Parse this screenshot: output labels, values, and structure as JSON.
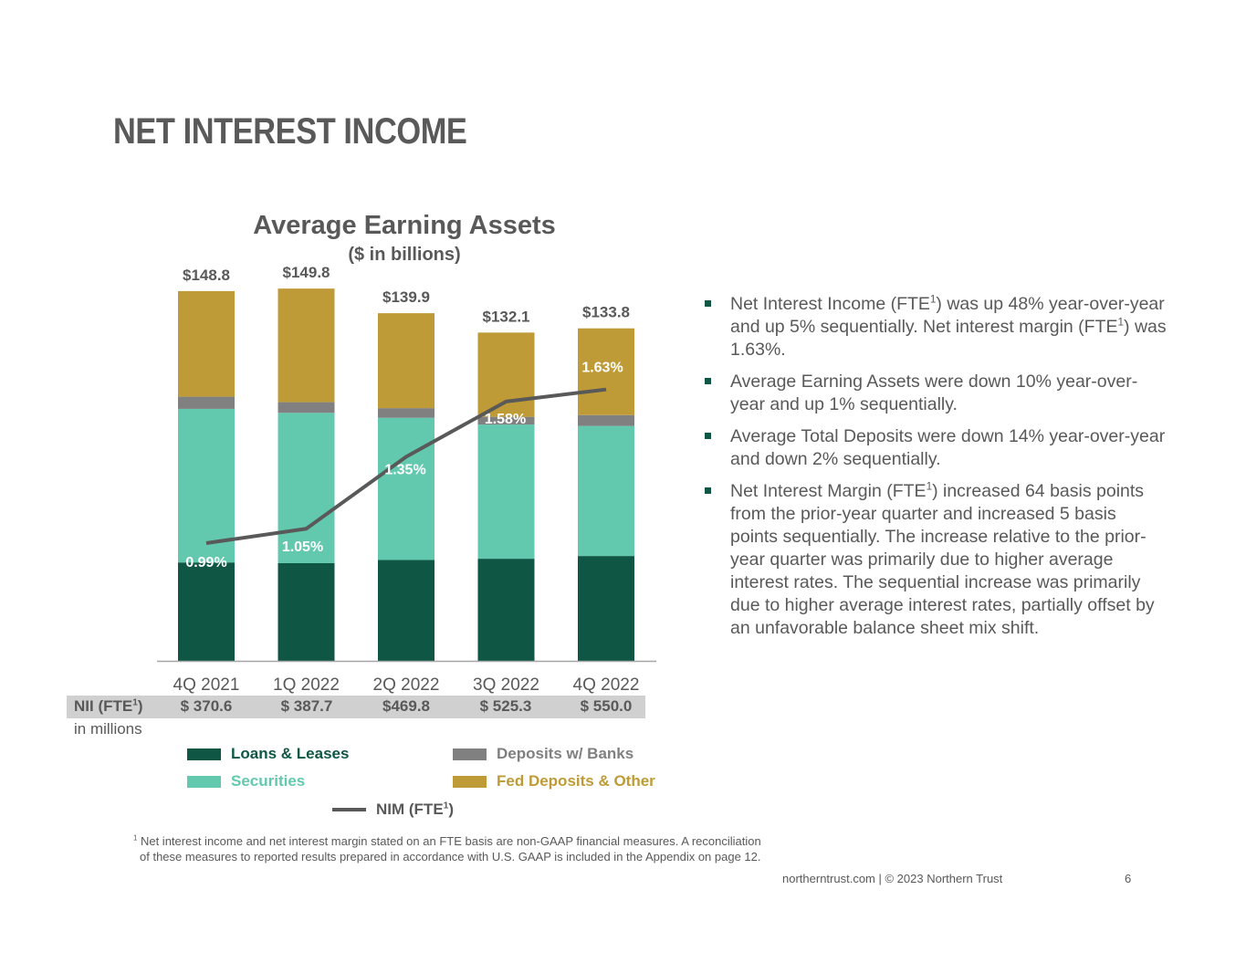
{
  "title": "NET INTEREST INCOME",
  "colors": {
    "loans": "#0f5744",
    "securities": "#63c9ae",
    "deposits": "#808080",
    "fed": "#be9b36",
    "nim_line": "#595959",
    "text": "#595959"
  },
  "chart_data": {
    "type": "bar",
    "stacked": true,
    "title": "Average Earning Assets",
    "subtitle": "($ in billions)",
    "categories": [
      "4Q 2021",
      "1Q 2022",
      "2Q 2022",
      "3Q 2022",
      "4Q 2022"
    ],
    "totals": [
      "$148.8",
      "$149.8",
      "$139.9",
      "$132.1",
      "$133.8"
    ],
    "total_values": [
      148.8,
      149.8,
      139.9,
      132.1,
      133.8
    ],
    "ylim": [
      0,
      155
    ],
    "series": [
      {
        "name": "Loans & Leases",
        "key": "loans",
        "values": [
          39.6,
          39.3,
          40.6,
          41.1,
          42.2
        ]
      },
      {
        "name": "Securities",
        "key": "securities",
        "values": [
          61.8,
          60.5,
          57.2,
          54.0,
          52.3
        ]
      },
      {
        "name": "Deposits w/ Banks",
        "key": "deposits",
        "values": [
          4.9,
          4.3,
          3.9,
          3.1,
          4.4
        ]
      },
      {
        "name": "Fed Deposits & Other",
        "key": "fed",
        "values": [
          42.5,
          45.7,
          38.2,
          33.9,
          34.9
        ]
      }
    ],
    "line": {
      "name": "NIM (FTE1)",
      "values": [
        0.99,
        1.05,
        1.35,
        1.58,
        1.63
      ],
      "labels": [
        "0.99%",
        "1.05%",
        "1.35%",
        "1.58%",
        "1.63%"
      ]
    }
  },
  "nii": {
    "label": "NII (FTE",
    "label_sup": "1",
    "label_close": ")",
    "units": "in millions",
    "values": [
      "$ 370.6",
      "$ 387.7",
      "$469.8",
      "$ 525.3",
      "$ 550.0"
    ]
  },
  "legend": {
    "loans": "Loans & Leases",
    "securities": "Securities",
    "deposits": "Deposits w/ Banks",
    "fed": "Fed Deposits & Other",
    "nim": "NIM (FTE",
    "nim_sup": "1",
    "nim_close": ")"
  },
  "bullets": [
    {
      "parts": [
        "Net Interest Income (FTE",
        "1",
        ") was up 48% year-over-year and up 5% sequentially. Net interest margin (FTE",
        "1",
        ") was 1.63%."
      ]
    },
    {
      "parts": [
        "Average Earning Assets were down 10% year-over-year and up 1% sequentially."
      ]
    },
    {
      "parts": [
        "Average Total Deposits were down 14% year-over-year and down 2% sequentially."
      ]
    },
    {
      "parts": [
        "Net Interest Margin (FTE",
        "1",
        ") increased 64 basis points from the prior-year quarter and increased 5 basis points sequentially. The increase relative to the prior-year quarter was primarily due to higher average interest rates. The sequential increase was primarily due to higher average interest rates, partially offset by an unfavorable balance sheet mix shift."
      ]
    }
  ],
  "footnote": {
    "sup": "1",
    "line1": "Net interest income and net interest margin stated on an FTE basis are non-GAAP financial measures. A reconciliation",
    "line2": "of these measures to reported results prepared in accordance with U.S. GAAP is included in the Appendix on page 12."
  },
  "footer": {
    "text": "northerntrust.com  |  © 2023 Northern Trust",
    "page": "6"
  }
}
